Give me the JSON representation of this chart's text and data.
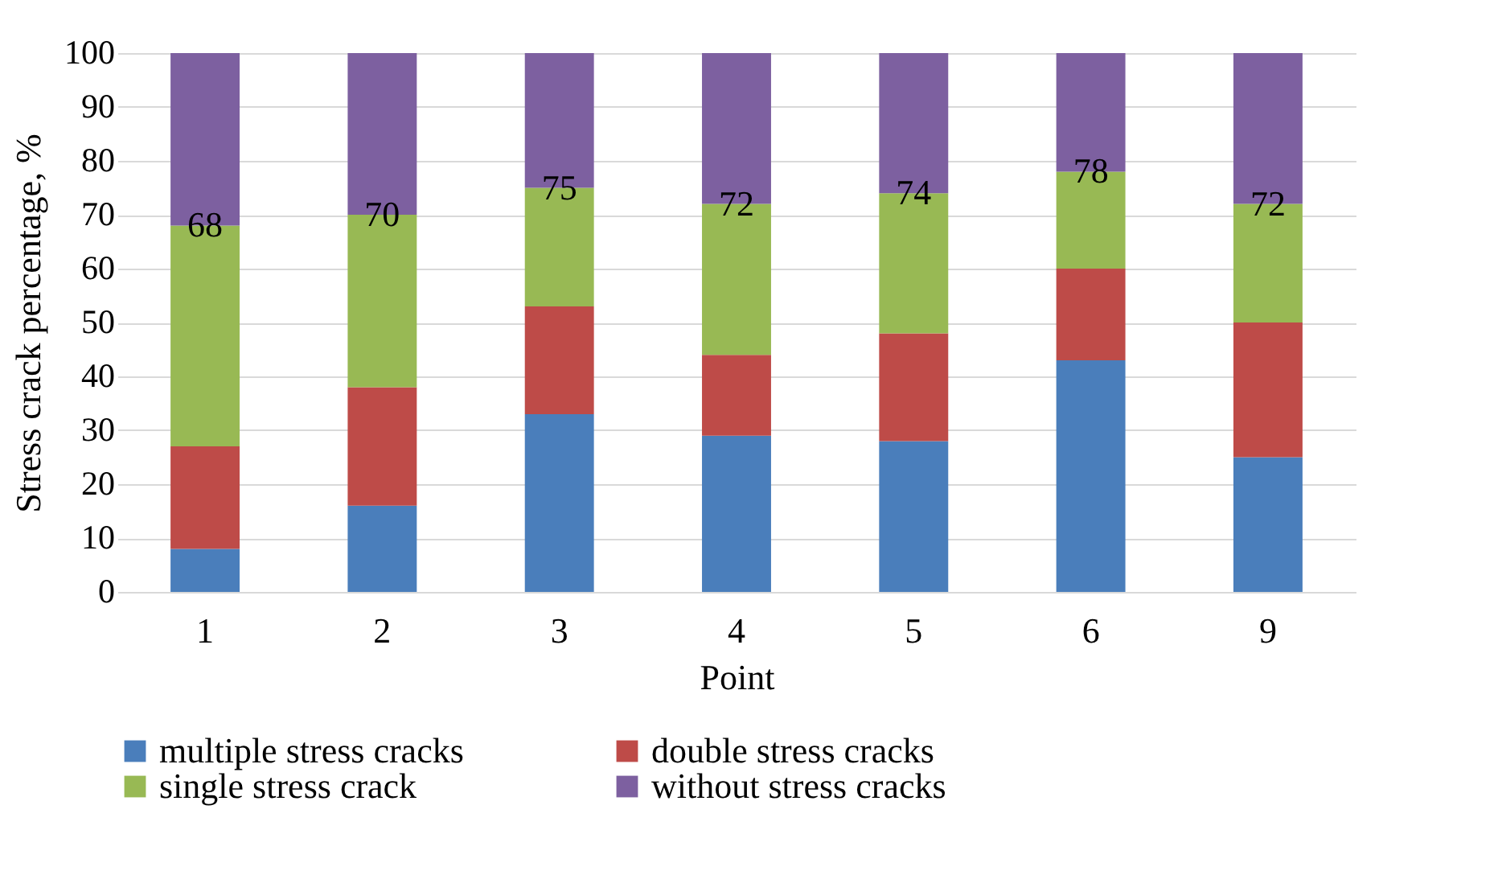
{
  "chart_data": {
    "type": "bar",
    "stacked": true,
    "xlabel": "Point",
    "ylabel": "Stress crack percentage, %",
    "categories": [
      "1",
      "2",
      "3",
      "4",
      "5",
      "6",
      "9"
    ],
    "series": [
      {
        "name": "multiple stress cracks",
        "color": "#4a7ebb",
        "values": [
          8,
          16,
          33,
          29,
          28,
          43,
          25
        ]
      },
      {
        "name": "double stress cracks",
        "color": "#be4b48",
        "values": [
          19,
          22,
          20,
          15,
          20,
          17,
          25
        ]
      },
      {
        "name": "single stress crack",
        "color": "#98b954",
        "values": [
          41,
          32,
          22,
          28,
          26,
          18,
          22
        ]
      },
      {
        "name": "without stress cracks",
        "color": "#7d60a0",
        "values": [
          32,
          30,
          25,
          28,
          26,
          22,
          28
        ]
      }
    ],
    "annotations": [
      {
        "text": "68",
        "x": "1",
        "y": 68
      },
      {
        "text": "70",
        "x": "2",
        "y": 70
      },
      {
        "text": "75",
        "x": "3",
        "y": 75
      },
      {
        "text": "72",
        "x": "4",
        "y": 72
      },
      {
        "text": "74",
        "x": "5",
        "y": 74
      },
      {
        "text": "78",
        "x": "6",
        "y": 78
      },
      {
        "text": "72",
        "x": "9",
        "y": 72
      }
    ],
    "ylim": [
      0,
      100
    ],
    "yticks": [
      0,
      10,
      20,
      30,
      40,
      50,
      60,
      70,
      80,
      90,
      100
    ],
    "grid": "y",
    "legend": "bottom"
  }
}
